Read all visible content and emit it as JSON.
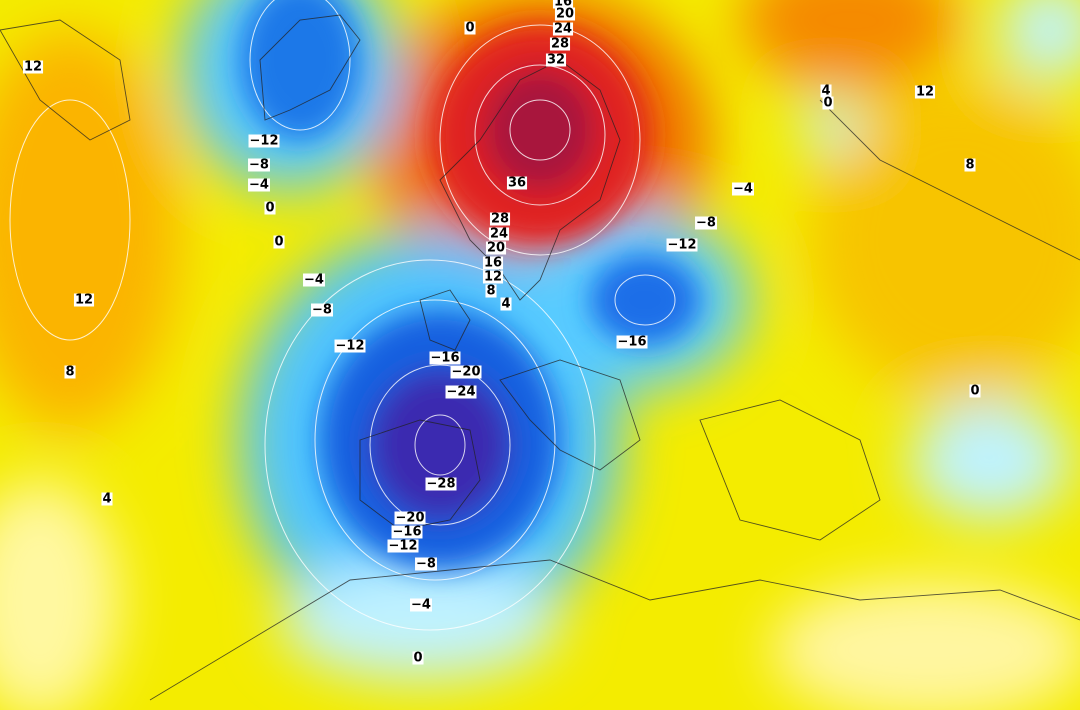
{
  "map": {
    "contour_labels": [
      "16",
      "20",
      "24",
      "28",
      "32",
      "0",
      "12",
      "-12",
      "-8",
      "-4",
      "0",
      "0",
      "36",
      "28",
      "24",
      "20",
      "16",
      "12",
      "8",
      "4",
      "4",
      "0",
      "12",
      "8",
      "-4",
      "-8",
      "-12",
      "-16",
      "-4",
      "-8",
      "-12",
      "-16",
      "-20",
      "-24",
      "-28",
      "-20",
      "-16",
      "-12",
      "-8",
      "-4",
      "0",
      "12",
      "8",
      "4",
      "0"
    ]
  }
}
